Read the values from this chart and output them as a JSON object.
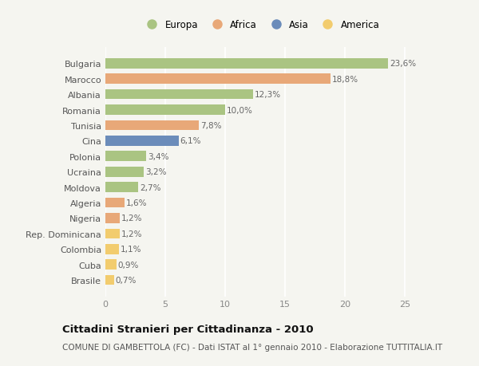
{
  "categories": [
    "Brasile",
    "Cuba",
    "Colombia",
    "Rep. Dominicana",
    "Nigeria",
    "Algeria",
    "Moldova",
    "Ucraina",
    "Polonia",
    "Cina",
    "Tunisia",
    "Romania",
    "Albania",
    "Marocco",
    "Bulgaria"
  ],
  "values": [
    0.7,
    0.9,
    1.1,
    1.2,
    1.2,
    1.6,
    2.7,
    3.2,
    3.4,
    6.1,
    7.8,
    10.0,
    12.3,
    18.8,
    23.6
  ],
  "labels": [
    "0,7%",
    "0,9%",
    "1,1%",
    "1,2%",
    "1,2%",
    "1,6%",
    "2,7%",
    "3,2%",
    "3,4%",
    "6,1%",
    "7,8%",
    "10,0%",
    "12,3%",
    "18,8%",
    "23,6%"
  ],
  "continents": [
    "America",
    "America",
    "America",
    "America",
    "Africa",
    "Africa",
    "Europa",
    "Europa",
    "Europa",
    "Asia",
    "Africa",
    "Europa",
    "Europa",
    "Africa",
    "Europa"
  ],
  "continent_colors": {
    "Europa": "#aac482",
    "Africa": "#e8a878",
    "Asia": "#6b8cba",
    "America": "#f2cc6e"
  },
  "legend_entries": [
    {
      "label": "Europa",
      "color": "#aac482"
    },
    {
      "label": "Africa",
      "color": "#e8a878"
    },
    {
      "label": "Asia",
      "color": "#6b8cba"
    },
    {
      "label": "America",
      "color": "#f2cc6e"
    }
  ],
  "xlim": [
    0,
    26
  ],
  "xticks": [
    0,
    5,
    10,
    15,
    20,
    25
  ],
  "title": "Cittadini Stranieri per Cittadinanza - 2010",
  "subtitle": "COMUNE DI GAMBETTOLA (FC) - Dati ISTAT al 1° gennaio 2010 - Elaborazione TUTTITALIA.IT",
  "background_color": "#f5f5f0",
  "bar_height": 0.65,
  "label_fontsize": 7.5,
  "ytick_fontsize": 8,
  "xtick_fontsize": 8,
  "title_fontsize": 9.5,
  "subtitle_fontsize": 7.5
}
